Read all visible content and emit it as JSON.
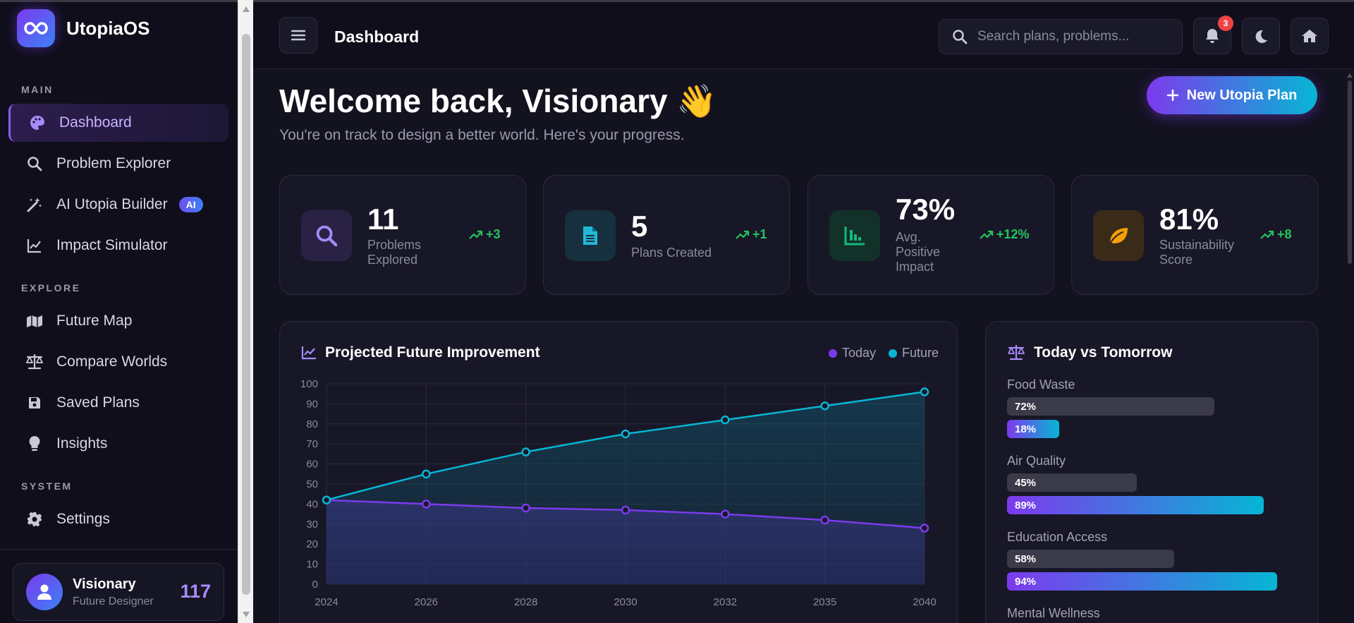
{
  "brand": {
    "name": "UtopiaOS"
  },
  "sidebar": {
    "sections": [
      "MAIN",
      "EXPLORE",
      "SYSTEM"
    ],
    "items": [
      {
        "label": "Dashboard",
        "icon": "palette-icon"
      },
      {
        "label": "Problem Explorer",
        "icon": "search-icon"
      },
      {
        "label": "AI Utopia Builder",
        "icon": "magic-wand-icon",
        "badge": "AI"
      },
      {
        "label": "Impact Simulator",
        "icon": "chart-line-icon"
      },
      {
        "label": "Future Map",
        "icon": "map-icon"
      },
      {
        "label": "Compare Worlds",
        "icon": "scale-icon"
      },
      {
        "label": "Saved Plans",
        "icon": "save-icon"
      },
      {
        "label": "Insights",
        "icon": "lightbulb-icon"
      },
      {
        "label": "Settings",
        "icon": "gear-icon"
      }
    ],
    "user": {
      "name": "Visionary",
      "role": "Future Designer",
      "points": "117"
    }
  },
  "topbar": {
    "title": "Dashboard",
    "search_placeholder": "Search plans, problems...",
    "notification_count": "3"
  },
  "welcome": {
    "title": "Welcome back, Visionary",
    "emoji": "👋",
    "subtitle": "You're on track to design a better world. Here's your progress.",
    "new_plan_label": "New Utopia Plan"
  },
  "stats": [
    {
      "value": "11",
      "label1": "Problems",
      "label2": "Explored",
      "label3": "",
      "trend": "+3",
      "icon": "search-icon",
      "color": "#a78bfa"
    },
    {
      "value": "5",
      "label1": "Plans Created",
      "label2": "",
      "label3": "",
      "trend": "+1",
      "icon": "document-icon",
      "color": "#22b8d8"
    },
    {
      "value": "73%",
      "label1": "Avg.",
      "label2": "Positive",
      "label3": "Impact",
      "trend": "+12%",
      "icon": "chart-bar-icon",
      "color": "#10b981"
    },
    {
      "value": "81%",
      "label1": "Sustainability",
      "label2": "Score",
      "label3": "",
      "trend": "+8",
      "icon": "leaf-icon",
      "color": "#f59e0b"
    }
  ],
  "chart_panel": {
    "title": "Projected Future Improvement",
    "legend_today": "Today",
    "legend_future": "Future"
  },
  "chart_data": {
    "type": "area",
    "x": [
      "2024",
      "2026",
      "2028",
      "2030",
      "2032",
      "2035",
      "2040"
    ],
    "series": [
      {
        "name": "Today",
        "values": [
          42,
          40,
          38,
          37,
          35,
          32,
          28
        ],
        "color": "#7c3aed"
      },
      {
        "name": "Future",
        "values": [
          42,
          55,
          66,
          75,
          82,
          89,
          96
        ],
        "color": "#06b6d4"
      }
    ],
    "ylim": [
      0,
      100
    ],
    "yticks": [
      0,
      10,
      20,
      30,
      40,
      50,
      60,
      70,
      80,
      90,
      100
    ],
    "grid": true,
    "legend": "top-right"
  },
  "compare": {
    "title": "Today vs Tomorrow",
    "items": [
      {
        "label": "Food Waste",
        "today": 72,
        "future": 18,
        "today_label": "72%",
        "future_label": "18%"
      },
      {
        "label": "Air Quality",
        "today": 45,
        "future": 89,
        "today_label": "45%",
        "future_label": "89%"
      },
      {
        "label": "Education Access",
        "today": 58,
        "future": 94,
        "today_label": "58%",
        "future_label": "94%"
      },
      {
        "label": "Mental Wellness"
      }
    ]
  }
}
